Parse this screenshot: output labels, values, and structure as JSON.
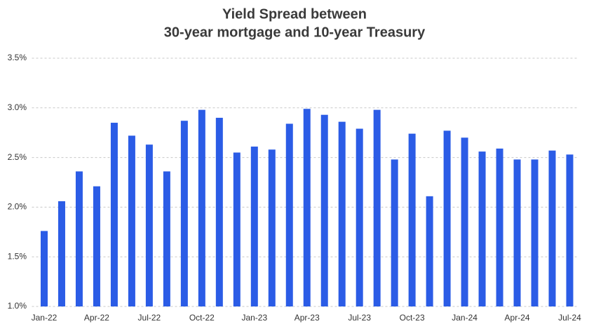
{
  "chart_data": {
    "type": "bar",
    "title": [
      "Yield Spread between",
      "30-year mortgage and 10-year Treasury"
    ],
    "categories": [
      "Jan-22",
      null,
      null,
      "Apr-22",
      null,
      null,
      "Jul-22",
      null,
      null,
      "Oct-22",
      null,
      null,
      "Jan-23",
      null,
      null,
      "Apr-23",
      null,
      null,
      "Jul-23",
      null,
      null,
      "Oct-23",
      null,
      null,
      "Jan-24",
      null,
      null,
      "Apr-24",
      null,
      null,
      "Jul-24"
    ],
    "values": [
      1.76,
      2.06,
      2.36,
      2.21,
      2.85,
      2.72,
      2.63,
      2.36,
      2.87,
      2.98,
      2.9,
      2.55,
      2.61,
      2.58,
      2.84,
      2.99,
      2.93,
      2.86,
      2.79,
      2.98,
      2.48,
      2.74,
      2.11,
      2.77,
      2.7,
      2.56,
      2.59,
      2.48,
      2.48,
      2.57,
      2.53
    ],
    "color": "#2b5ce6",
    "ylim": [
      1.0,
      3.5
    ],
    "yticks": [
      {
        "value": 1.0,
        "label": "1.0%"
      },
      {
        "value": 1.5,
        "label": "1.5%"
      },
      {
        "value": 2.0,
        "label": "2.0%"
      },
      {
        "value": 2.5,
        "label": "2.5%"
      },
      {
        "value": 3.0,
        "label": "3.0%"
      },
      {
        "value": 3.5,
        "label": "3.5%"
      }
    ],
    "grid": true
  }
}
